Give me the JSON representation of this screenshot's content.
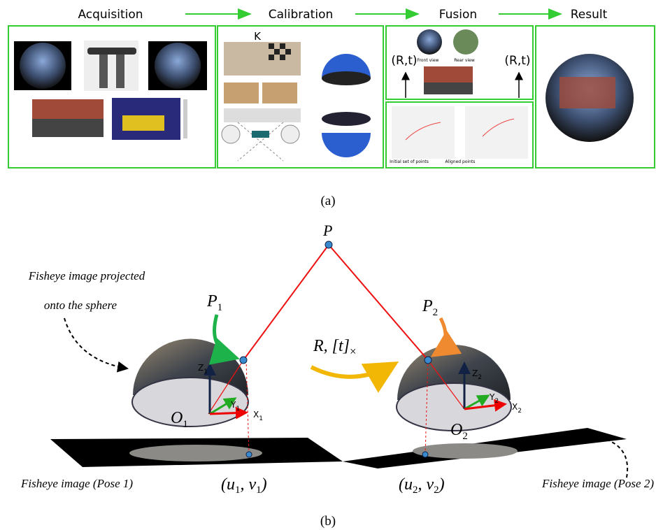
{
  "panel_a": {
    "stages": [
      "Acquisition",
      "Calibration",
      "Fusion",
      "Result"
    ],
    "annotations": {
      "k": "K",
      "rt_left": "(R,t)",
      "rt_right": "(R,t)",
      "front_view": "Front view",
      "rear_view": "Rear view",
      "initial_points": "Initial set of points",
      "aligned_points": "Aligned points"
    },
    "caption": "(a)"
  },
  "panel_b": {
    "point": "P",
    "p1": {
      "base": "P",
      "sub": "1"
    },
    "p2": {
      "base": "P",
      "sub": "2"
    },
    "transform": {
      "base": "R, [t]",
      "sub": "×"
    },
    "sphere_note": [
      "Fisheye image projected",
      "onto the sphere"
    ],
    "axes1": {
      "z": {
        "base": "Z",
        "sub": "1"
      },
      "y": {
        "base": "Y",
        "sub": "1"
      },
      "x": {
        "base": "X",
        "sub": "1"
      },
      "o": {
        "base": "O",
        "sub": "1"
      }
    },
    "axes2": {
      "z": {
        "base": "Z",
        "sub": "2"
      },
      "y": {
        "base": "Y",
        "sub": "2"
      },
      "x": {
        "base": "X",
        "sub": "2"
      },
      "o": {
        "base": "O",
        "sub": "2"
      }
    },
    "uv1": {
      "open": "(u",
      "sub1": "1",
      "mid": ", v",
      "sub2": "1",
      "close": ")"
    },
    "uv2": {
      "open": "(u",
      "sub1": "2",
      "mid": ", v",
      "sub2": "2",
      "close": ")"
    },
    "pose1": "Fisheye image (Pose 1)",
    "pose2": "Fisheye image (Pose 2)",
    "caption": "(b)"
  }
}
